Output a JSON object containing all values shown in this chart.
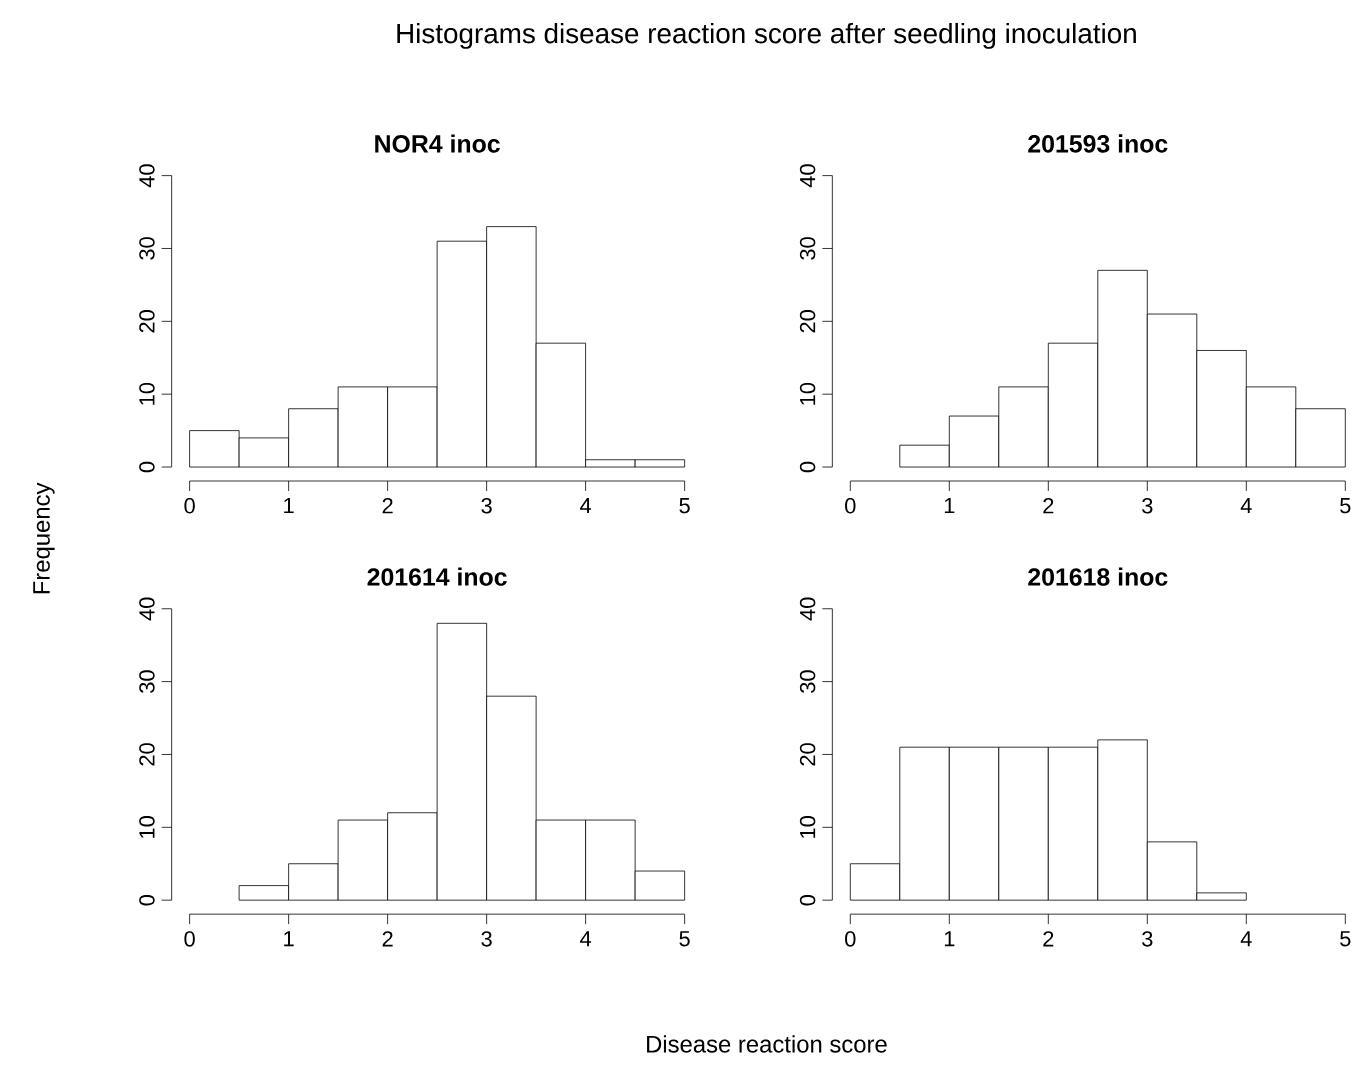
{
  "chart_data": [
    {
      "type": "histogram",
      "title": "NOR4 inoc",
      "annotations": [
        "Histograms disease reaction score after seedling inoculation"
      ],
      "ylabel": "Frequency",
      "color": "#ffffff",
      "bins": [
        0,
        0.5,
        1,
        1.5,
        2,
        2.5,
        3,
        3.5,
        4,
        4.5,
        5
      ],
      "values": [
        5,
        4,
        8,
        11,
        11,
        31,
        33,
        17,
        1,
        1
      ],
      "xlim": [
        0,
        5
      ],
      "xticks": [
        0,
        1,
        2,
        3,
        4,
        5
      ],
      "ylim": [
        0,
        40
      ],
      "yticks": [
        0,
        10,
        20,
        30,
        40
      ]
    },
    {
      "type": "histogram",
      "title": "201593 inoc",
      "color": "#ffffff",
      "bins": [
        0.5,
        1,
        1.5,
        2,
        2.5,
        3,
        3.5,
        4,
        4.5,
        5
      ],
      "values": [
        3,
        7,
        11,
        17,
        27,
        21,
        16,
        11,
        8
      ],
      "xlim": [
        0,
        5
      ],
      "xticks": [
        0,
        1,
        2,
        3,
        4,
        5
      ],
      "ylim": [
        0,
        40
      ],
      "yticks": [
        0,
        10,
        20,
        30,
        40
      ]
    },
    {
      "type": "histogram",
      "title": "201614 inoc",
      "xlabel": "Disease reaction score",
      "color": "#ffffff",
      "bins": [
        0.5,
        1,
        1.5,
        2,
        2.5,
        3,
        3.5,
        4,
        4.5,
        5
      ],
      "values": [
        2,
        5,
        11,
        12,
        38,
        28,
        11,
        11,
        4
      ],
      "xlim": [
        0,
        5
      ],
      "xticks": [
        0,
        1,
        2,
        3,
        4,
        5
      ],
      "ylim": [
        0,
        40
      ],
      "yticks": [
        0,
        10,
        20,
        30,
        40
      ]
    },
    {
      "type": "histogram",
      "title": "201618 inoc",
      "color": "#ffffff",
      "bins": [
        0,
        0.5,
        1,
        1.5,
        2,
        2.5,
        3,
        3.5,
        4
      ],
      "values": [
        5,
        21,
        21,
        21,
        21,
        22,
        8,
        1
      ],
      "xlim": [
        0,
        5
      ],
      "xticks": [
        0,
        1,
        2,
        3,
        4,
        5
      ],
      "ylim": [
        0,
        40
      ],
      "yticks": [
        0,
        10,
        20,
        30,
        40
      ]
    }
  ]
}
